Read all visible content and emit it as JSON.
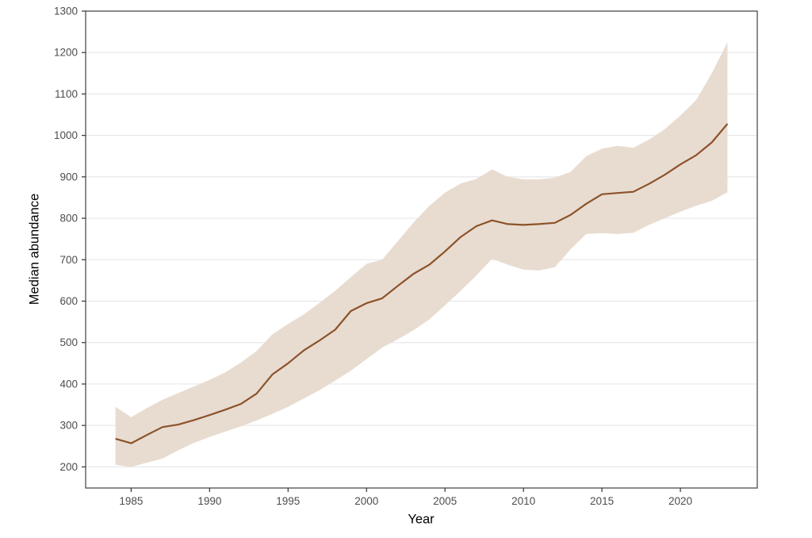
{
  "figure": {
    "background": "#ffffff"
  },
  "chart_data": {
    "type": "line",
    "title": "",
    "xlabel": "Year",
    "ylabel": "Median abundance",
    "legend": "none",
    "grid": "horizontal-major-only",
    "x_domain": [
      1982.1,
      2024.9
    ],
    "y_domain": [
      149,
      1300
    ],
    "x_ticks": [
      1985,
      1990,
      1995,
      2000,
      2005,
      2010,
      2015,
      2020
    ],
    "y_ticks": [
      200,
      300,
      400,
      500,
      600,
      700,
      800,
      900,
      1000,
      1100,
      1200,
      1300
    ],
    "x": [
      1984,
      1985,
      1986,
      1987,
      1988,
      1989,
      1990,
      1991,
      1992,
      1993,
      1994,
      1995,
      1996,
      1997,
      1998,
      1999,
      2000,
      2001,
      2002,
      2003,
      2004,
      2005,
      2006,
      2007,
      2008,
      2009,
      2010,
      2011,
      2012,
      2013,
      2014,
      2015,
      2016,
      2017,
      2018,
      2019,
      2020,
      2021,
      2022,
      2023
    ],
    "series": [
      {
        "name": "median-abundance",
        "type": "line",
        "values": [
          268,
          257,
          277,
          296,
          302,
          313,
          325,
          338,
          352,
          377,
          423,
          450,
          481,
          505,
          531,
          576,
          595,
          607,
          637,
          666,
          688,
          720,
          755,
          781,
          795,
          786,
          784,
          786,
          789,
          808,
          835,
          858,
          861,
          864,
          883,
          905,
          930,
          952,
          983,
          1028
        ]
      },
      {
        "name": "confidence-ribbon",
        "type": "band",
        "lower": [
          205,
          200,
          210,
          220,
          240,
          258,
          272,
          285,
          298,
          312,
          328,
          345,
          365,
          385,
          408,
          432,
          460,
          488,
          508,
          530,
          556,
          590,
          625,
          662,
          702,
          688,
          676,
          674,
          682,
          725,
          762,
          764,
          762,
          765,
          784,
          800,
          816,
          830,
          842,
          863
        ],
        "upper": [
          345,
          320,
          342,
          362,
          378,
          394,
          410,
          428,
          452,
          480,
          520,
          545,
          568,
          596,
          625,
          658,
          690,
          700,
          745,
          790,
          830,
          862,
          884,
          895,
          918,
          900,
          894,
          894,
          898,
          912,
          950,
          968,
          975,
          970,
          990,
          1015,
          1048,
          1085,
          1150,
          1225
        ]
      }
    ],
    "colors": {
      "line": "#8c5229",
      "ribbon": "#e8dcd1",
      "gridline": "#e8e8e8",
      "panel_border": "#4d4d4d",
      "tick_mark": "#333333",
      "tick_label": "#4d4d4d",
      "axis_title": "#000000",
      "panel_background": "#ffffff"
    }
  }
}
